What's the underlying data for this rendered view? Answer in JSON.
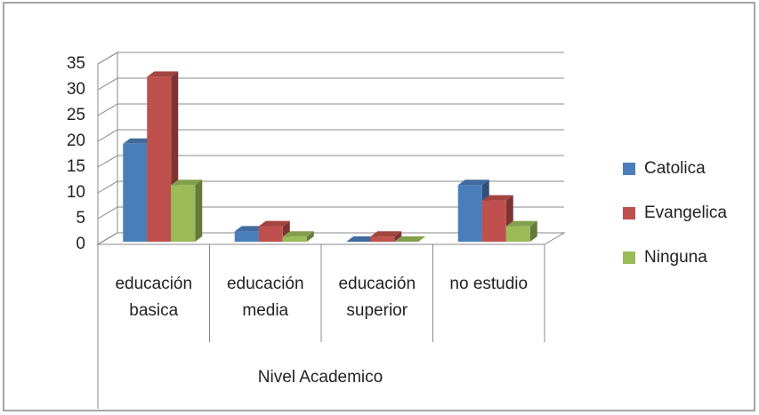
{
  "chart_data": {
    "type": "bar3d",
    "categories": [
      "educación basica",
      "educación media",
      "educación superior",
      "no estudio"
    ],
    "series": [
      {
        "name": "Catolica",
        "color": "#4a7ebb",
        "values": [
          19,
          2,
          0,
          11
        ]
      },
      {
        "name": "Evangelica",
        "color": "#c0504d",
        "values": [
          32,
          3,
          1,
          8
        ]
      },
      {
        "name": "Ninguna",
        "color": "#9bbb59",
        "values": [
          11,
          1,
          0,
          3
        ]
      }
    ],
    "x_label": "Nivel Academico",
    "ylim": [
      0,
      35
    ],
    "yticks": [
      0,
      5,
      10,
      15,
      20,
      25,
      30,
      35
    ],
    "grid": true,
    "legend": "right"
  }
}
